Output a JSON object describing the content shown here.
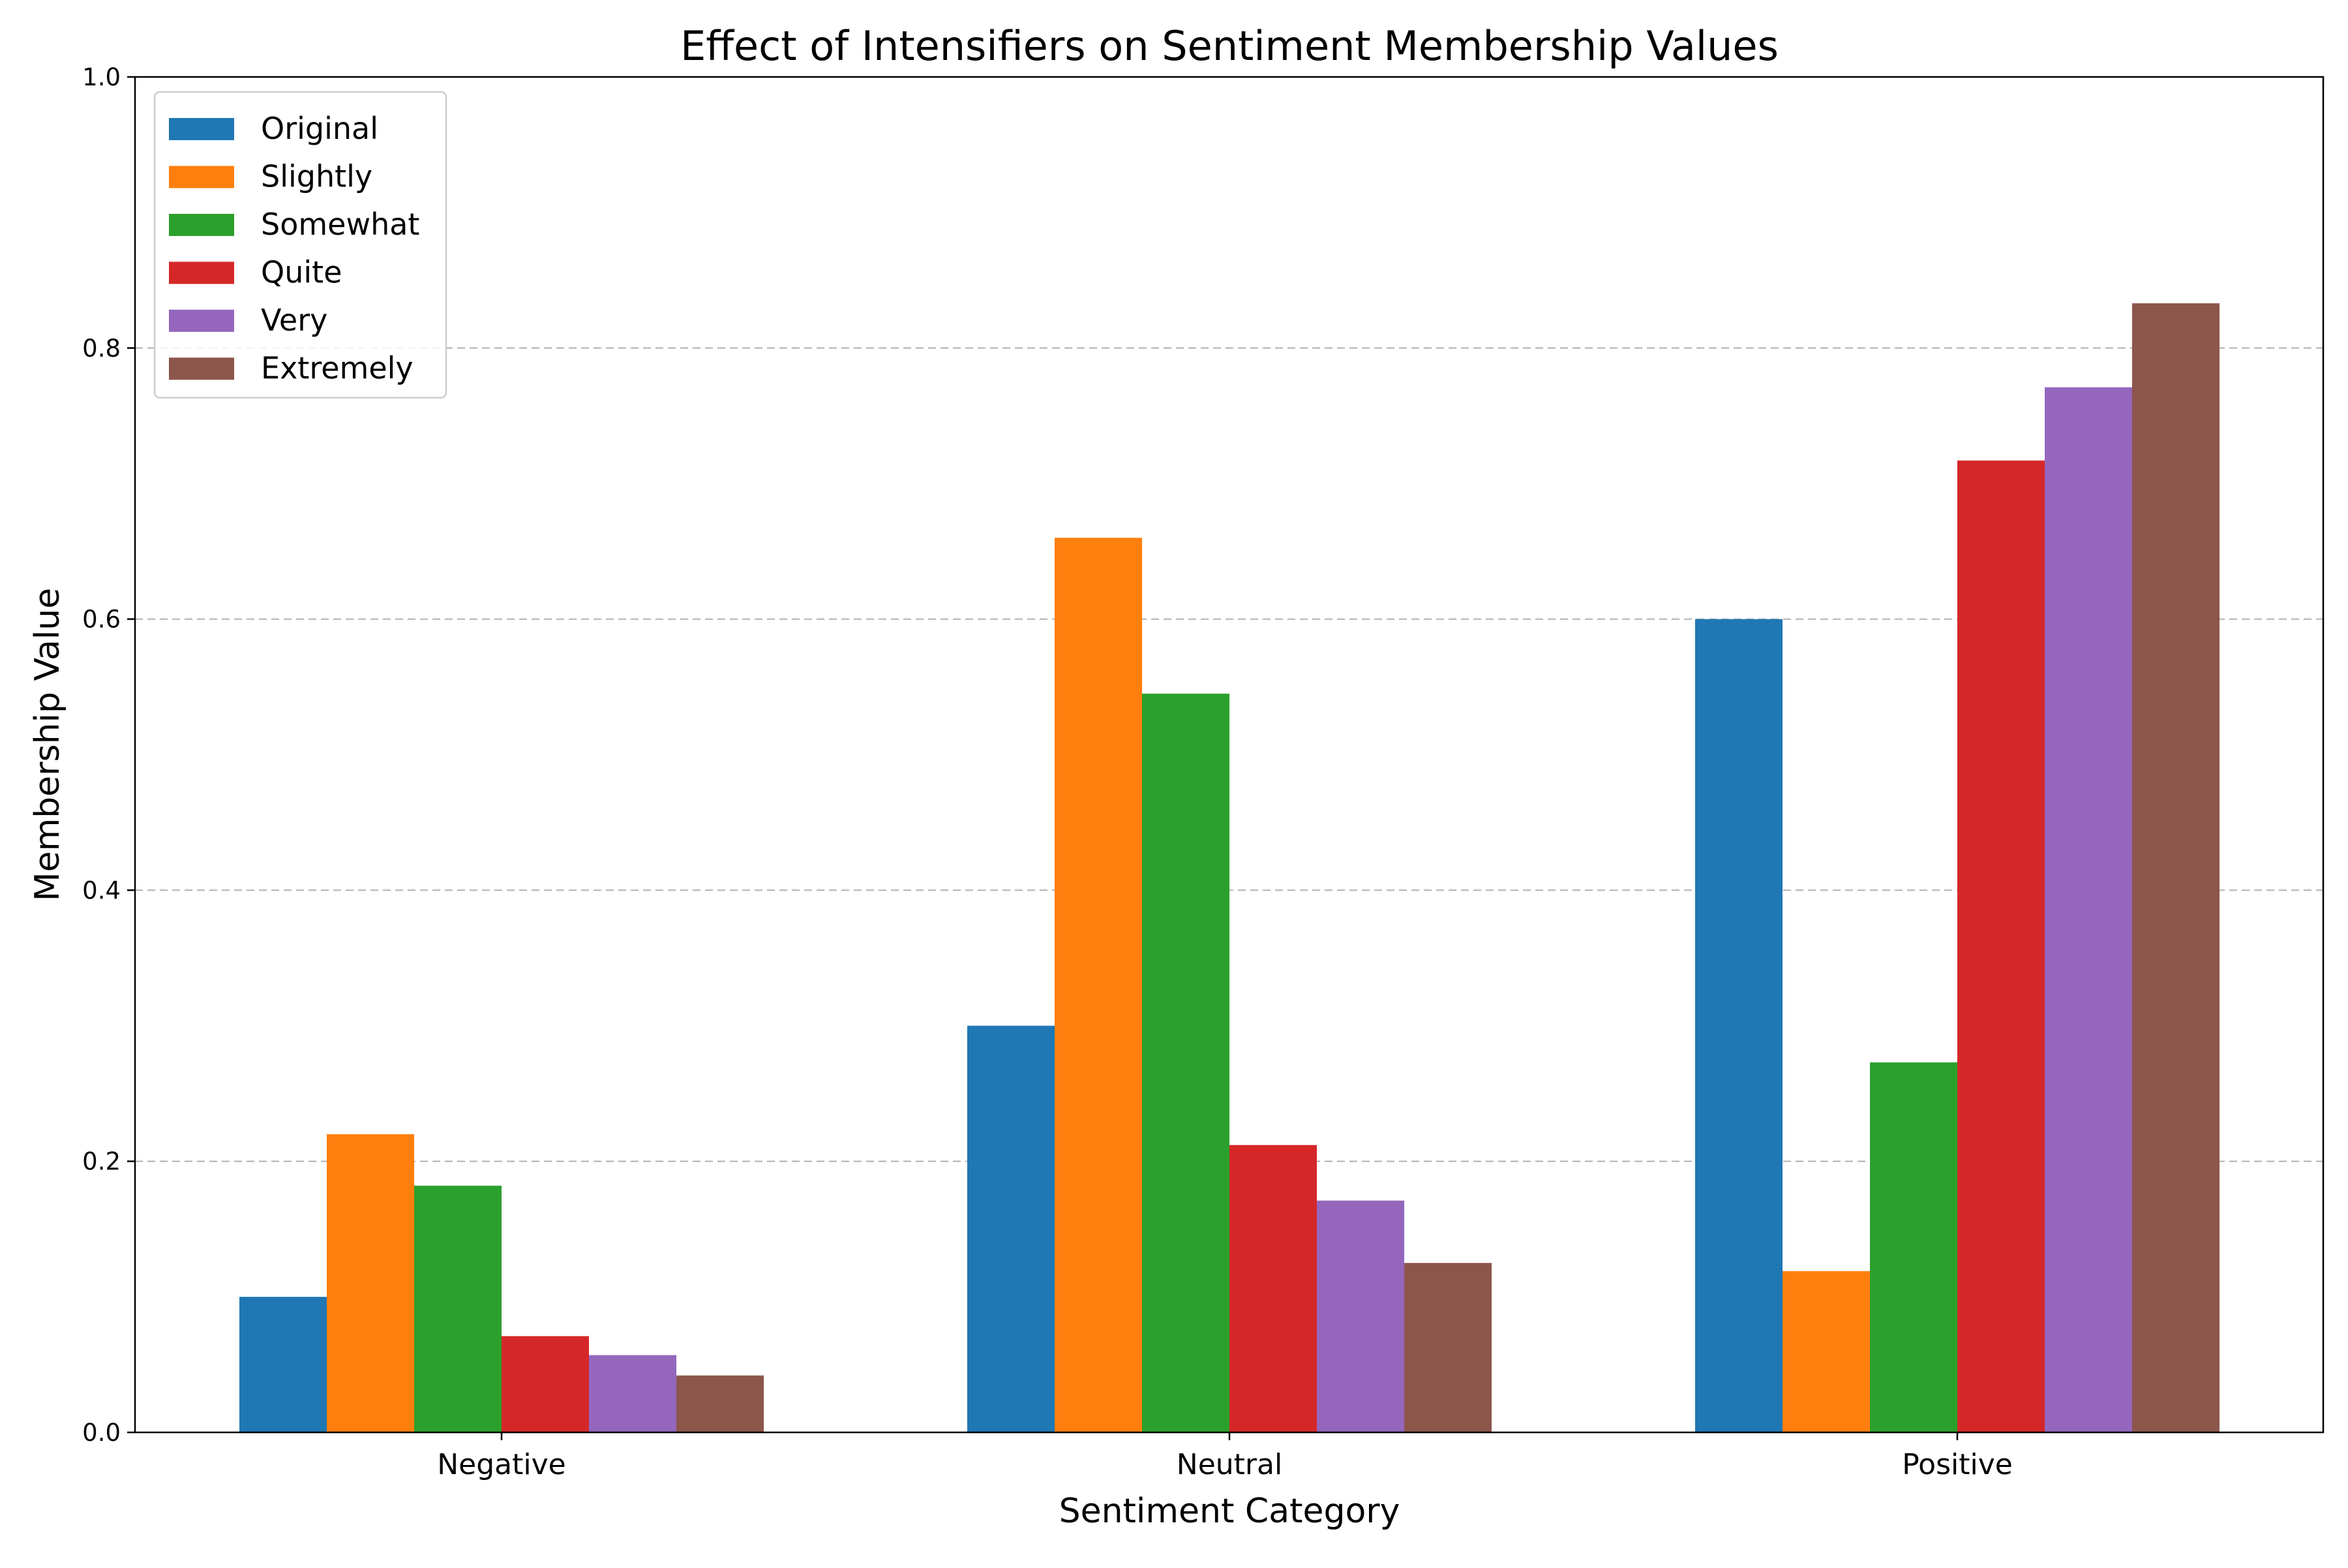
{
  "chart_data": {
    "type": "bar",
    "title": "Effect of Intensifiers on Sentiment Membership Values",
    "xlabel": "Sentiment Category",
    "ylabel": "Membership Value",
    "categories": [
      "Negative",
      "Neutral",
      "Positive"
    ],
    "ylim": [
      0,
      1.0
    ],
    "yticks": [
      "0.0",
      "0.2",
      "0.4",
      "0.6",
      "0.8",
      "1.0"
    ],
    "grid": "y-dashed",
    "legend_position": "top-left",
    "series": [
      {
        "name": "Original",
        "color": "#1f77b4",
        "values": [
          0.1,
          0.3,
          0.6
        ]
      },
      {
        "name": "Slightly",
        "color": "#ff7f0e",
        "values": [
          0.22,
          0.66,
          0.119
        ]
      },
      {
        "name": "Somewhat",
        "color": "#2ca02c",
        "values": [
          0.182,
          0.545,
          0.273
        ]
      },
      {
        "name": "Quite",
        "color": "#d62728",
        "values": [
          0.071,
          0.212,
          0.717
        ]
      },
      {
        "name": "Very",
        "color": "#9467bd",
        "values": [
          0.057,
          0.171,
          0.771
        ]
      },
      {
        "name": "Extremely",
        "color": "#8c564b",
        "values": [
          0.042,
          0.125,
          0.833
        ]
      }
    ]
  }
}
